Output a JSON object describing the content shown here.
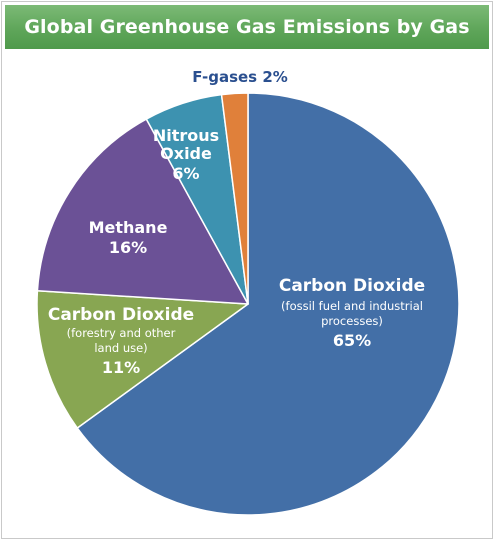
{
  "chart_data": {
    "type": "pie",
    "title": "Global Greenhouse Gas Emissions by Gas",
    "slices": [
      {
        "name": "Carbon Dioxide",
        "sub": [
          "(fossil fuel and industrial",
          "processes)"
        ],
        "value": 65,
        "pct_label": "65%",
        "color": "#436fa7"
      },
      {
        "name": "Carbon Dioxide",
        "sub": [
          "(forestry and other",
          "land use)"
        ],
        "value": 11,
        "pct_label": "11%",
        "color": "#88a652"
      },
      {
        "name": "Methane",
        "sub": [],
        "value": 16,
        "pct_label": "16%",
        "color": "#6b5196"
      },
      {
        "name": "Nitrous Oxide",
        "sub": [],
        "value": 6,
        "pct_label": "6%",
        "color": "#3d92b0"
      },
      {
        "name": "F-gases",
        "sub": [],
        "value": 2,
        "pct_label": "2%",
        "color": "#e0803a"
      }
    ]
  },
  "labels": {
    "co2_fossil_name": "Carbon Dioxide",
    "co2_fossil_sub1": "(fossil fuel and industrial",
    "co2_fossil_sub2": "processes)",
    "co2_fossil_pct": "65%",
    "co2_forest_name": "Carbon Dioxide",
    "co2_forest_sub1": "(forestry and other",
    "co2_forest_sub2": "land use)",
    "co2_forest_pct": "11%",
    "methane_name": "Methane",
    "methane_pct": "16%",
    "nitrous_line1": "Nitrous",
    "nitrous_line2": "Oxide",
    "nitrous_pct": "6%",
    "fgases": "F-gases 2%"
  }
}
